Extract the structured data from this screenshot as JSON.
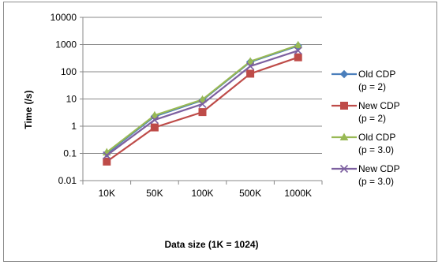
{
  "chart_data": {
    "type": "line",
    "title": "",
    "xlabel": "Data size (1K = 1024)",
    "ylabel": "Time (/s)",
    "y_scale": "log",
    "ylim": [
      0.01,
      10000
    ],
    "y_ticks": [
      "0.01",
      "0.1",
      "1",
      "10",
      "100",
      "1000",
      "10000"
    ],
    "categories": [
      "10K",
      "50K",
      "100K",
      "500K",
      "1000K"
    ],
    "grid": "horizontal",
    "legend_position": "right",
    "series": [
      {
        "name_line1": "Old CDP",
        "name_line2": "(p = 2)",
        "marker": "diamond",
        "color": "#4a7ebb",
        "values": [
          0.1,
          2.3,
          9.0,
          230,
          900
        ]
      },
      {
        "name_line1": "New CDP",
        "name_line2": "(p = 2)",
        "marker": "square",
        "color": "#be4b48",
        "values": [
          0.05,
          0.9,
          3.3,
          85,
          340
        ]
      },
      {
        "name_line1": "Old CDP",
        "name_line2": "(p = 3.0)",
        "marker": "triangle",
        "color": "#98b954",
        "values": [
          0.11,
          2.5,
          9.5,
          240,
          950
        ]
      },
      {
        "name_line1": "New CDP",
        "name_line2": "(p = 3.0)",
        "marker": "x",
        "color": "#7d60a0",
        "values": [
          0.085,
          1.7,
          6.5,
          160,
          600
        ]
      }
    ]
  }
}
